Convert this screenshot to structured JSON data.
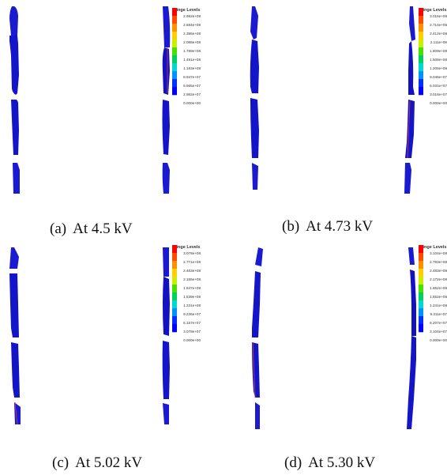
{
  "legend_title": "Fringe Levels",
  "colormap": [
    "#ff0000",
    "#ff4a00",
    "#ff9000",
    "#ffd000",
    "#c8f000",
    "#48e000",
    "#00d060",
    "#00d8d0",
    "#0090ff",
    "#0030ff",
    "#0000ff"
  ],
  "panels": [
    {
      "tag": "(a)",
      "caption": "At 4.5 kV",
      "levels": [
        "2.982e+08",
        "2.684e+08",
        "2.386e+08",
        "2.088e+08",
        "1.789e+08",
        "1.491e+08",
        "1.193e+08",
        "8.947e+07",
        "5.965e+07",
        "2.982e+07",
        "0.000e+00"
      ]
    },
    {
      "tag": "(b)",
      "caption": "At 4.73 kV",
      "levels": [
        "3.016e+08",
        "2.714e+08",
        "2.412e+08",
        "2.111e+08",
        "1.809e+08",
        "1.508e+08",
        "1.206e+08",
        "9.046e+07",
        "6.031e+07",
        "3.016e+07",
        "0.000e+00"
      ]
    },
    {
      "tag": "(c)",
      "caption": "At 5.02 kV",
      "levels": [
        "3.078e+08",
        "2.771e+08",
        "2.463e+08",
        "2.155e+08",
        "1.847e+08",
        "1.539e+08",
        "1.231e+08",
        "9.236e+07",
        "6.157e+07",
        "3.078e+07",
        "0.000e+00"
      ]
    },
    {
      "tag": "(d)",
      "caption": "At 5.30 kV",
      "levels": [
        "3.104e+08",
        "2.793e+08",
        "2.483e+08",
        "2.172e+08",
        "1.862e+08",
        "1.552e+08",
        "1.241e+08",
        "9.311e+07",
        "6.207e+07",
        "3.104e+07",
        "0.000e+00"
      ]
    }
  ]
}
